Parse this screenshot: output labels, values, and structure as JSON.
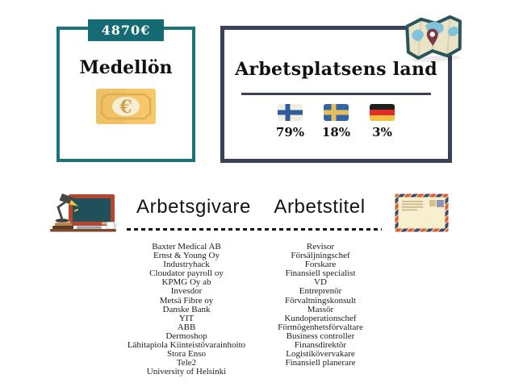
{
  "salary_card": {
    "badge": "4870€",
    "title": "Medellön",
    "icon": "euro-banknote-icon"
  },
  "country_card": {
    "title": "Arbetsplatsens land",
    "icon": "world-map-icon",
    "countries": [
      {
        "flag": "finland-flag-icon",
        "percent": "79%"
      },
      {
        "flag": "sweden-flag-icon",
        "percent": "18%"
      },
      {
        "flag": "germany-flag-icon",
        "percent": "3%"
      }
    ]
  },
  "employers": {
    "title": "Arbetsgivare",
    "icon": "desk-blackboard-icon",
    "items": [
      "Baxter Medical AB",
      "Ernst & Young Oy",
      "Industryhack",
      "Cloudator payroll oy",
      "KPMG Oy ab",
      "Invesdor",
      "Metsä Fibre oy",
      "Danske Bank",
      "YIT",
      "ABB",
      "Dermoshop",
      "Lähitapiola Kiinteistövarainhoito",
      "Stora Enso",
      "Tele2",
      "University of Helsinki"
    ]
  },
  "job_titles": {
    "title": "Arbetstitel",
    "icon": "airmail-envelope-icon",
    "items": [
      "Revisor",
      "Försäljningschef",
      "Forskare",
      "Finansiell specialist",
      "VD",
      "Entreprenör",
      "Förvaltningskonsult",
      "Massör",
      "Kundoperationschef",
      "Förmögenhetsförvaltare",
      "Business controller",
      "Finansdirektör",
      "Logistikövervakare",
      "Finansiell planerare"
    ]
  },
  "colors": {
    "teal_border": "#1a747a",
    "badge_teal": "#156b73",
    "navy_border": "#3b4156",
    "banknote_gold": "#f6c76b",
    "board_red": "#b6452f",
    "board_slate": "#20505a",
    "airmail_orange": "#e2592a",
    "airmail_navy": "#414862",
    "map_water_blue": "#7fc3da",
    "text": "#141414"
  }
}
